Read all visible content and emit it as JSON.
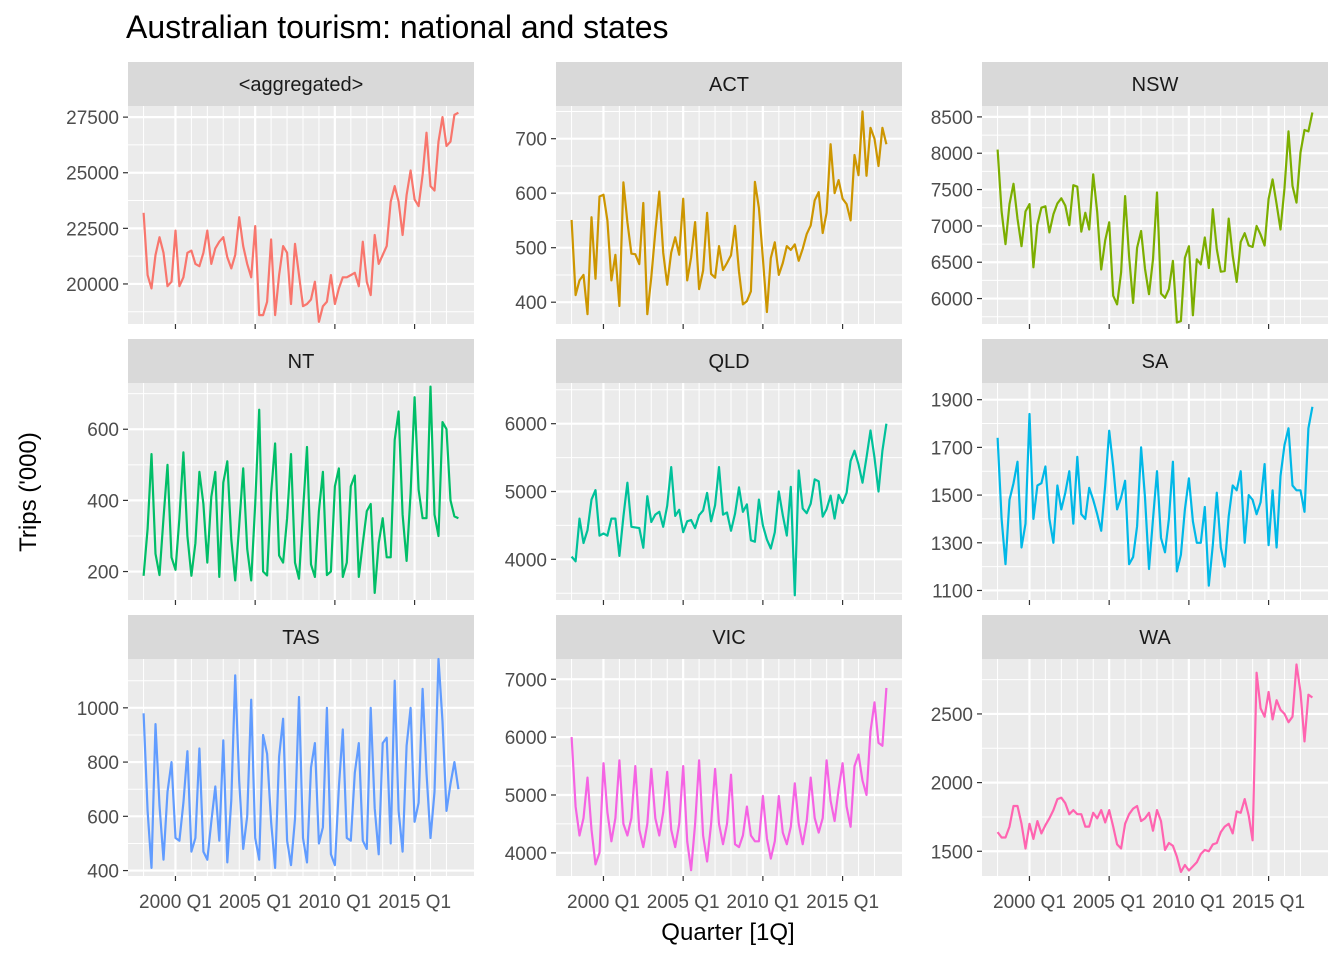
{
  "chart_data": {
    "type": "line",
    "title": "Australian tourism: national and states",
    "xlabel": "Quarter [1Q]",
    "ylabel": "Trips ('000)",
    "x_start": "1998 Q1",
    "x_end": "2017 Q4",
    "x_tick_labels": [
      "2000 Q1",
      "2005 Q1",
      "2010 Q1",
      "2015 Q1"
    ],
    "grid": true,
    "legend": "none",
    "panels": [
      {
        "name": "<aggregated>",
        "color": "#F8766D",
        "ylim": [
          18200,
          28000
        ],
        "yticks": [
          20000,
          22500,
          25000,
          27500
        ],
        "yticklabels": [
          "20000",
          "22500",
          "25000",
          "27500"
        ],
        "values": [
          23200,
          20400,
          19800,
          21300,
          22100,
          21400,
          19900,
          20100,
          22400,
          19900,
          20300,
          21400,
          21500,
          20900,
          20800,
          21400,
          22400,
          20900,
          21600,
          21900,
          22100,
          21200,
          20700,
          21300,
          23000,
          21700,
          20900,
          20300,
          22600,
          18600,
          18600,
          19200,
          22000,
          18600,
          20400,
          21700,
          21400,
          19100,
          21800,
          20400,
          19000,
          19100,
          19300,
          20100,
          18300,
          19000,
          19200,
          20400,
          19100,
          19800,
          20300,
          20300,
          20400,
          20500,
          19900,
          21900,
          20100,
          19500,
          22200,
          20900,
          21300,
          21700,
          23700,
          24400,
          23700,
          22200,
          24000,
          25100,
          23800,
          23500,
          24900,
          26800,
          24400,
          24200,
          26400,
          27500,
          26200,
          26400,
          27600,
          27700
        ]
      },
      {
        "name": "ACT",
        "color": "#CD9600",
        "ylim": [
          360,
          760
        ],
        "yticks": [
          400,
          500,
          600,
          700
        ],
        "yticklabels": [
          "400",
          "500",
          "600",
          "700"
        ],
        "values": [
          551,
          413,
          440,
          450,
          378,
          556,
          443,
          594,
          597,
          550,
          440,
          487,
          393,
          620,
          547,
          489,
          488,
          470,
          582,
          378,
          446,
          529,
          603,
          491,
          432,
          491,
          519,
          487,
          590,
          440,
          482,
          547,
          424,
          458,
          564,
          452,
          445,
          503,
          459,
          472,
          486,
          540,
          456,
          396,
          402,
          420,
          621,
          573,
          480,
          382,
          481,
          510,
          450,
          472,
          503,
          496,
          506,
          476,
          498,
          525,
          541,
          587,
          602,
          527,
          564,
          690,
          600,
          624,
          590,
          580,
          550,
          670,
          633,
          750,
          632,
          720,
          700,
          650,
          720,
          690
        ]
      },
      {
        "name": "NSW",
        "color": "#7CAE00",
        "ylim": [
          5650,
          8650
        ],
        "yticks": [
          6000,
          6500,
          7000,
          7500,
          8000,
          8500
        ],
        "yticklabels": [
          "6000",
          "6500",
          "7000",
          "7500",
          "8000",
          "8500"
        ],
        "values": [
          8050,
          7200,
          6750,
          7300,
          7580,
          7100,
          6720,
          7200,
          7300,
          6430,
          7020,
          7250,
          7270,
          6910,
          7160,
          7310,
          7380,
          7280,
          7010,
          7560,
          7540,
          6920,
          7180,
          6950,
          7710,
          7190,
          6400,
          6800,
          7050,
          6040,
          5920,
          6360,
          7410,
          6580,
          5940,
          6700,
          6930,
          6410,
          6060,
          6540,
          7460,
          6070,
          6010,
          6130,
          6520,
          5670,
          5690,
          6560,
          6720,
          5770,
          6540,
          6470,
          6840,
          6420,
          7230,
          6680,
          6370,
          6380,
          7100,
          6590,
          6230,
          6780,
          6900,
          6730,
          6710,
          7000,
          6880,
          6730,
          7370,
          7640,
          7300,
          6950,
          7520,
          8300,
          7550,
          7320,
          8010,
          8320,
          8300,
          8560
        ]
      },
      {
        "name": "NT",
        "color": "#00BE67",
        "ylim": [
          120,
          730
        ],
        "yticks": [
          200,
          400,
          600
        ],
        "yticklabels": [
          "200",
          "400",
          "600"
        ],
        "values": [
          188,
          320,
          530,
          250,
          190,
          350,
          500,
          240,
          205,
          350,
          535,
          300,
          188,
          280,
          480,
          390,
          225,
          410,
          480,
          185,
          450,
          510,
          290,
          175,
          330,
          490,
          264,
          175,
          390,
          655,
          200,
          189,
          420,
          560,
          245,
          225,
          350,
          530,
          225,
          180,
          370,
          550,
          220,
          185,
          370,
          480,
          190,
          200,
          440,
          490,
          185,
          225,
          440,
          470,
          185,
          280,
          370,
          390,
          140,
          280,
          350,
          240,
          240,
          570,
          650,
          360,
          230,
          420,
          690,
          430,
          350,
          350,
          720,
          360,
          300,
          620,
          600,
          400,
          355,
          350
        ]
      },
      {
        "name": "QLD",
        "color": "#00C19A",
        "ylim": [
          3400,
          6600
        ],
        "yticks": [
          4000,
          5000,
          6000
        ],
        "yticklabels": [
          "4000",
          "5000",
          "6000"
        ],
        "values": [
          4040,
          3970,
          4600,
          4240,
          4430,
          4880,
          5020,
          4350,
          4380,
          4350,
          4600,
          4600,
          4050,
          4630,
          5130,
          4480,
          4470,
          4460,
          4170,
          4930,
          4550,
          4660,
          4700,
          4480,
          4790,
          5360,
          4640,
          4730,
          4400,
          4560,
          4580,
          4460,
          4650,
          4720,
          4980,
          4560,
          4800,
          5360,
          4660,
          4690,
          4420,
          4670,
          5060,
          4700,
          4810,
          4280,
          4260,
          4880,
          4500,
          4290,
          4160,
          4400,
          5000,
          4650,
          4350,
          5070,
          3470,
          5310,
          4750,
          4680,
          4820,
          5180,
          5150,
          4630,
          4740,
          4940,
          4600,
          4950,
          4830,
          4980,
          5450,
          5600,
          5400,
          5130,
          5500,
          5900,
          5500,
          5000,
          5600,
          6000
        ]
      },
      {
        "name": "SA",
        "color": "#00B8E7",
        "ylim": [
          1060,
          1970
        ],
        "yticks": [
          1100,
          1300,
          1500,
          1700,
          1900
        ],
        "yticklabels": [
          "1100",
          "1300",
          "1500",
          "1700",
          "1900"
        ],
        "values": [
          1740,
          1400,
          1210,
          1480,
          1550,
          1640,
          1280,
          1380,
          1840,
          1400,
          1540,
          1550,
          1620,
          1400,
          1300,
          1540,
          1440,
          1510,
          1600,
          1380,
          1660,
          1420,
          1400,
          1530,
          1480,
          1420,
          1350,
          1540,
          1770,
          1620,
          1440,
          1490,
          1560,
          1210,
          1240,
          1370,
          1700,
          1490,
          1190,
          1400,
          1600,
          1320,
          1260,
          1400,
          1640,
          1180,
          1250,
          1440,
          1570,
          1390,
          1300,
          1300,
          1450,
          1120,
          1290,
          1510,
          1280,
          1200,
          1410,
          1540,
          1520,
          1600,
          1300,
          1500,
          1480,
          1420,
          1470,
          1630,
          1290,
          1520,
          1280,
          1580,
          1710,
          1780,
          1540,
          1520,
          1520,
          1430,
          1780,
          1870
        ]
      },
      {
        "name": "TAS",
        "color": "#619CFF",
        "ylim": [
          380,
          1180
        ],
        "yticks": [
          400,
          600,
          800,
          1000
        ],
        "yticklabels": [
          "400",
          "600",
          "800",
          "1000"
        ],
        "values": [
          980,
          620,
          410,
          940,
          640,
          440,
          690,
          800,
          520,
          510,
          650,
          840,
          470,
          520,
          850,
          470,
          440,
          580,
          710,
          510,
          880,
          430,
          660,
          1120,
          730,
          480,
          600,
          1030,
          520,
          440,
          900,
          830,
          580,
          410,
          820,
          960,
          510,
          420,
          590,
          1040,
          520,
          430,
          780,
          870,
          500,
          560,
          1000,
          460,
          420,
          710,
          920,
          520,
          510,
          760,
          870,
          510,
          480,
          1000,
          630,
          460,
          870,
          890,
          500,
          1100,
          620,
          470,
          860,
          1000,
          580,
          650,
          1070,
          760,
          520,
          690,
          1180,
          950,
          620,
          720,
          800,
          700
        ]
      },
      {
        "name": "VIC",
        "color": "#F564E3",
        "ylim": [
          3600,
          7350
        ],
        "yticks": [
          4000,
          5000,
          6000,
          7000
        ],
        "yticklabels": [
          "4000",
          "5000",
          "6000",
          "7000"
        ],
        "values": [
          6000,
          4800,
          4300,
          4600,
          5300,
          4400,
          3800,
          4000,
          5550,
          4700,
          4200,
          4600,
          5600,
          4500,
          4300,
          4600,
          5500,
          4400,
          4100,
          4500,
          5450,
          4600,
          4300,
          4700,
          5400,
          4400,
          4100,
          4500,
          5500,
          4200,
          3700,
          4500,
          5600,
          4300,
          3850,
          4500,
          5450,
          4500,
          4150,
          4500,
          5350,
          4150,
          4100,
          4300,
          4800,
          4300,
          4200,
          4200,
          4980,
          4250,
          3900,
          4200,
          4980,
          4350,
          4150,
          4450,
          5200,
          4500,
          4150,
          4550,
          5300,
          4600,
          4350,
          4600,
          5600,
          4900,
          4550,
          5100,
          5550,
          4800,
          4450,
          5500,
          5700,
          5250,
          5000,
          6100,
          6600,
          5900,
          5850,
          6850
        ]
      },
      {
        "name": "WA",
        "color": "#FF64B0",
        "ylim": [
          1320,
          2900
        ],
        "yticks": [
          1500,
          2000,
          2500
        ],
        "yticklabels": [
          "1500",
          "2000",
          "2500"
        ],
        "values": [
          1640,
          1600,
          1600,
          1680,
          1830,
          1830,
          1700,
          1520,
          1700,
          1590,
          1720,
          1630,
          1690,
          1740,
          1800,
          1880,
          1890,
          1850,
          1770,
          1800,
          1770,
          1770,
          1680,
          1680,
          1780,
          1740,
          1800,
          1710,
          1800,
          1680,
          1550,
          1520,
          1700,
          1770,
          1810,
          1830,
          1720,
          1740,
          1780,
          1650,
          1800,
          1720,
          1510,
          1560,
          1540,
          1460,
          1350,
          1400,
          1360,
          1390,
          1420,
          1480,
          1510,
          1500,
          1550,
          1560,
          1640,
          1680,
          1700,
          1630,
          1790,
          1780,
          1880,
          1760,
          1580,
          2800,
          2540,
          2480,
          2660,
          2460,
          2600,
          2530,
          2500,
          2440,
          2480,
          2860,
          2660,
          2300,
          2640,
          2620
        ]
      }
    ]
  }
}
